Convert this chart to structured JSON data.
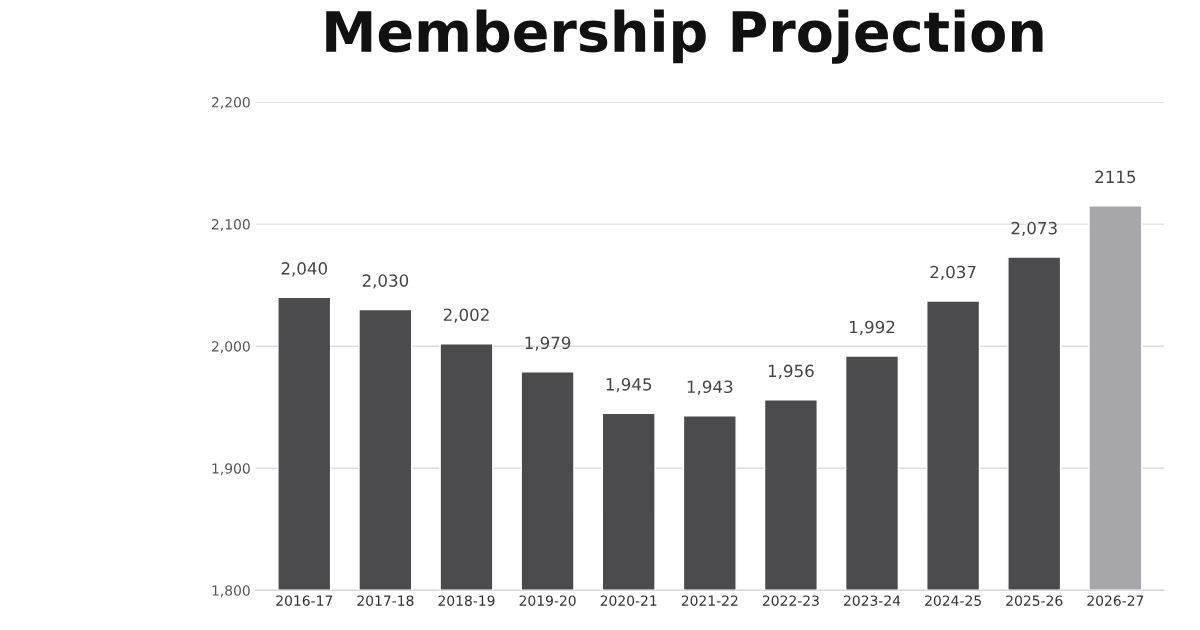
{
  "chart_data": {
    "type": "bar",
    "title": "Membership Projection",
    "categories": [
      "2016-17",
      "2017-18",
      "2018-19",
      "2019-20",
      "2020-21",
      "2021-22",
      "2022-23",
      "2023-24",
      "2024-25",
      "2025-26",
      "2026-27"
    ],
    "values": [
      2040,
      2030,
      2002,
      1979,
      1945,
      1943,
      1956,
      1992,
      2037,
      2073,
      2115
    ],
    "value_labels": [
      "2,040",
      "2,030",
      "2,002",
      "1,979",
      "1,945",
      "1,943",
      "1,956",
      "1,992",
      "2,037",
      "2,073",
      "2115"
    ],
    "colors": [
      "#4b4b4d",
      "#4b4b4d",
      "#4b4b4d",
      "#4b4b4d",
      "#4b4b4d",
      "#4b4b4d",
      "#4b4b4d",
      "#4b4b4d",
      "#4b4b4d",
      "#4b4b4d",
      "#a7a7ab"
    ],
    "ylim": [
      1800,
      2200
    ],
    "yticks": [
      {
        "value": 1800,
        "label": "1,800"
      },
      {
        "value": 1900,
        "label": "1,900"
      },
      {
        "value": 2000,
        "label": "2,000"
      },
      {
        "value": 2100,
        "label": "2,100"
      },
      {
        "value": 2200,
        "label": "2,200"
      }
    ],
    "grid": "y"
  }
}
